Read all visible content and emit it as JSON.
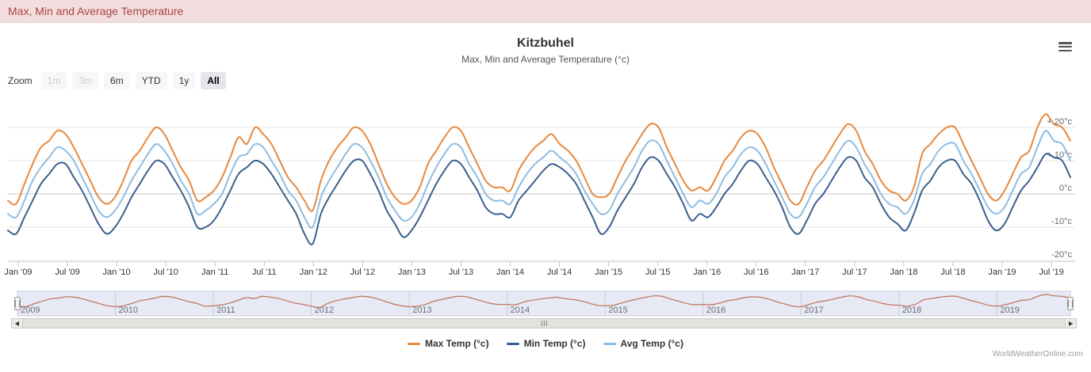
{
  "page": {
    "alert_title": "Max, Min and Average Temperature"
  },
  "chart": {
    "zoom_label": "Zoom",
    "zoom_buttons": [
      {
        "label": "1m",
        "state": "disabled"
      },
      {
        "label": "3m",
        "state": "disabled"
      },
      {
        "label": "6m",
        "state": "normal"
      },
      {
        "label": "YTD",
        "state": "normal"
      },
      {
        "label": "1y",
        "state": "normal"
      },
      {
        "label": "All",
        "state": "selected"
      }
    ],
    "menu_icon": "hamburger-menu-icon",
    "watermark": "WorldWeatherOnline.com"
  },
  "chart_data": {
    "type": "line",
    "title": "Kitzbuhel",
    "subtitle": "Max, Min and Average Temperature (°c)",
    "x_start": "Jan 2009",
    "x_end": "Oct 2019",
    "x_unit": "month",
    "ylim": [
      -22,
      27
    ],
    "grid": "horizontal-only",
    "legend_position": "bottom-center",
    "y_ticks": [
      {
        "value": 20,
        "label": "+ 20°c"
      },
      {
        "value": 10,
        "label": "+ 10°c"
      },
      {
        "value": 0,
        "label": "0°c"
      },
      {
        "value": -10,
        "label": "-10°c"
      },
      {
        "value": -20,
        "label": "-20°c"
      }
    ],
    "x_tick_labels": [
      "Jan '09",
      "Jul '09",
      "Jan '10",
      "Jul '10",
      "Jan '11",
      "Jul '11",
      "Jan '12",
      "Jul '12",
      "Jan '13",
      "Jul '13",
      "Jan '14",
      "Jul '14",
      "Jan '15",
      "Jul '15",
      "Jan '16",
      "Jul '16",
      "Jan '17",
      "Jul '17",
      "Jan '18",
      "Jul '18",
      "Jan '19",
      "Jul '19"
    ],
    "series": [
      {
        "id": "max-temp",
        "name": "Max Temp (°c)",
        "color": "#e8883c",
        "values": [
          -2,
          -3,
          3,
          9,
          14,
          16,
          19,
          18,
          14,
          9,
          4,
          -1,
          -3,
          -1,
          4,
          10,
          13,
          17,
          20,
          18,
          13,
          8,
          4,
          -2,
          -1,
          1,
          5,
          11,
          17,
          15,
          20,
          18,
          15,
          10,
          5,
          2,
          -2,
          -5,
          4,
          10,
          14,
          17,
          20,
          19,
          15,
          9,
          3,
          -1,
          -3,
          -2,
          2,
          9,
          13,
          17,
          20,
          19,
          14,
          9,
          4,
          2,
          2,
          1,
          7,
          11,
          14,
          16,
          18,
          15,
          13,
          10,
          5,
          0,
          -1,
          0,
          5,
          10,
          14,
          18,
          21,
          20,
          14,
          9,
          4,
          1,
          2,
          1,
          5,
          10,
          13,
          17,
          19,
          18,
          14,
          8,
          3,
          -2,
          -3,
          2,
          7,
          10,
          14,
          18,
          21,
          19,
          13,
          9,
          4,
          1,
          0,
          -2,
          2,
          12,
          15,
          18,
          20,
          20,
          15,
          10,
          5,
          0,
          -2,
          1,
          6,
          11,
          13,
          20,
          24,
          21,
          20,
          16
        ]
      },
      {
        "id": "min-temp",
        "name": "Min Temp (°c)",
        "color": "#3a5f8f",
        "values": [
          -11,
          -12,
          -7,
          -2,
          3,
          6,
          9,
          9,
          5,
          1,
          -4,
          -9,
          -12,
          -10,
          -6,
          -1,
          3,
          7,
          10,
          9,
          5,
          1,
          -4,
          -10,
          -10,
          -8,
          -4,
          1,
          6,
          8,
          10,
          9,
          6,
          2,
          -2,
          -6,
          -12,
          -15,
          -6,
          -1,
          3,
          7,
          10,
          10,
          6,
          1,
          -5,
          -9,
          -13,
          -11,
          -7,
          -2,
          3,
          7,
          10,
          9,
          5,
          1,
          -4,
          -6,
          -6,
          -7,
          -2,
          1,
          4,
          7,
          9,
          8,
          6,
          3,
          -2,
          -7,
          -12,
          -10,
          -5,
          -1,
          3,
          8,
          11,
          10,
          6,
          2,
          -3,
          -8,
          -6,
          -7,
          -4,
          0,
          3,
          7,
          10,
          9,
          5,
          1,
          -4,
          -10,
          -12,
          -8,
          -3,
          0,
          4,
          8,
          11,
          10,
          5,
          2,
          -3,
          -7,
          -9,
          -11,
          -6,
          1,
          4,
          8,
          10,
          10,
          6,
          3,
          -2,
          -8,
          -11,
          -9,
          -4,
          1,
          4,
          8,
          12,
          11,
          10,
          5
        ]
      },
      {
        "id": "avg-temp",
        "name": "Avg Temp (°c)",
        "color": "#8fbce2",
        "values": [
          -6,
          -7,
          -2,
          4,
          8,
          11,
          14,
          13,
          10,
          5,
          0,
          -5,
          -7,
          -5,
          -1,
          4,
          8,
          12,
          15,
          13,
          9,
          4,
          0,
          -6,
          -5,
          -3,
          0,
          6,
          11,
          12,
          15,
          14,
          10,
          6,
          1,
          -2,
          -7,
          -10,
          -1,
          4,
          8,
          12,
          15,
          14,
          10,
          5,
          -1,
          -5,
          -8,
          -7,
          -3,
          3,
          8,
          12,
          15,
          14,
          9,
          5,
          0,
          -2,
          -2,
          -3,
          2,
          6,
          9,
          11,
          13,
          11,
          9,
          6,
          1,
          -3,
          -6,
          -5,
          0,
          4,
          8,
          13,
          16,
          15,
          10,
          5,
          0,
          -4,
          -2,
          -3,
          0,
          5,
          8,
          12,
          14,
          13,
          9,
          4,
          -1,
          -6,
          -7,
          -3,
          2,
          5,
          9,
          13,
          16,
          14,
          9,
          5,
          0,
          -3,
          -4,
          -6,
          -2,
          6,
          9,
          13,
          15,
          15,
          10,
          6,
          1,
          -4,
          -6,
          -4,
          1,
          6,
          8,
          14,
          19,
          16,
          15,
          10
        ]
      }
    ],
    "navigator": {
      "series": "Max Temp (°c)",
      "color": "#c0705a",
      "background": "#e7eaf5",
      "year_labels": [
        "2009",
        "2010",
        "2011",
        "2012",
        "2013",
        "2014",
        "2015",
        "2016",
        "2017",
        "2018",
        "2019"
      ]
    }
  }
}
